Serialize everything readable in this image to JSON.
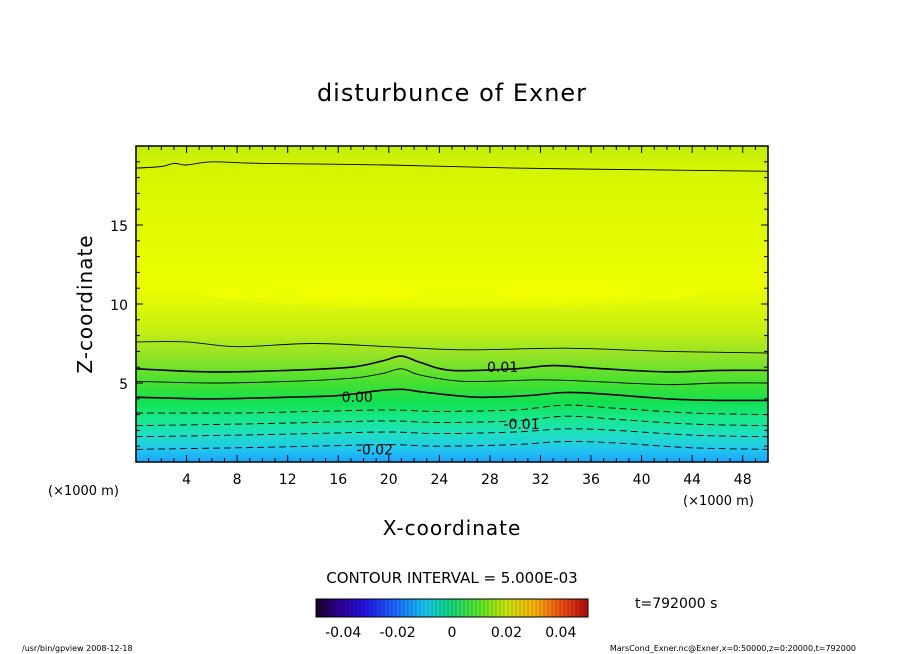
{
  "chart_data": {
    "type": "contour",
    "title": "disturbunce of Exner",
    "xlabel": "X-coordinate",
    "ylabel": "Z-coordinate",
    "x_unit": "(×1000 m)",
    "y_unit": "(×1000 m)",
    "xlim": [
      0,
      50
    ],
    "ylim": [
      0,
      20
    ],
    "x_ticks": [
      4,
      8,
      12,
      16,
      20,
      24,
      28,
      32,
      36,
      40,
      44,
      48
    ],
    "y_ticks": [
      5,
      10,
      15
    ],
    "contour_interval_text": "CONTOUR INTERVAL = 5.000E-03",
    "time_text": "t=792000 s",
    "contour_labels": [
      {
        "text": "0.01",
        "x": 29,
        "y": 6.0
      },
      {
        "text": "0.00",
        "x": 17.5,
        "y": 4.1
      },
      {
        "text": "-0.01",
        "x": 30.5,
        "y": 2.4
      },
      {
        "text": "-0.02",
        "x": 18.9,
        "y": 0.8
      }
    ],
    "contours": [
      {
        "level": 0.015,
        "style": "thin",
        "points": [
          [
            0,
            18.6
          ],
          [
            2,
            18.7
          ],
          [
            3,
            18.9
          ],
          [
            4,
            18.8
          ],
          [
            6,
            19.0
          ],
          [
            10,
            18.9
          ],
          [
            20,
            18.8
          ],
          [
            30,
            18.6
          ],
          [
            40,
            18.5
          ],
          [
            50,
            18.4
          ]
        ]
      },
      {
        "level": 0.01,
        "style": "thin",
        "points": [
          [
            0,
            7.6
          ],
          [
            4,
            7.6
          ],
          [
            8,
            7.3
          ],
          [
            14,
            7.5
          ],
          [
            20,
            7.3
          ],
          [
            26,
            7.1
          ],
          [
            34,
            7.2
          ],
          [
            42,
            7.0
          ],
          [
            50,
            6.9
          ]
        ]
      },
      {
        "level": 0.01,
        "style": "solid",
        "points": [
          [
            0,
            5.9
          ],
          [
            6,
            5.7
          ],
          [
            12,
            5.8
          ],
          [
            17,
            6.0
          ],
          [
            19.5,
            6.4
          ],
          [
            21,
            6.7
          ],
          [
            22.5,
            6.3
          ],
          [
            25,
            5.8
          ],
          [
            30,
            5.9
          ],
          [
            33,
            6.1
          ],
          [
            37,
            5.9
          ],
          [
            42,
            5.7
          ],
          [
            46,
            5.8
          ],
          [
            50,
            5.8
          ]
        ]
      },
      {
        "level": 0.005,
        "style": "thin",
        "points": [
          [
            0,
            5.1
          ],
          [
            6,
            5.0
          ],
          [
            12,
            5.1
          ],
          [
            17,
            5.3
          ],
          [
            19.5,
            5.6
          ],
          [
            21,
            5.9
          ],
          [
            22.5,
            5.5
          ],
          [
            26,
            5.1
          ],
          [
            32,
            5.2
          ],
          [
            36,
            5.1
          ],
          [
            42,
            4.9
          ],
          [
            46,
            5.0
          ],
          [
            50,
            5.0
          ]
        ]
      },
      {
        "level": 0.0,
        "style": "solid",
        "points": [
          [
            0,
            4.1
          ],
          [
            6,
            4.0
          ],
          [
            12,
            4.1
          ],
          [
            16,
            4.2
          ],
          [
            19,
            4.5
          ],
          [
            21,
            4.6
          ],
          [
            23,
            4.4
          ],
          [
            27,
            4.1
          ],
          [
            31,
            4.2
          ],
          [
            34,
            4.4
          ],
          [
            37,
            4.3
          ],
          [
            42,
            4.0
          ],
          [
            46,
            3.9
          ],
          [
            50,
            3.9
          ]
        ]
      },
      {
        "level": -0.005,
        "style": "dashed",
        "points": [
          [
            0,
            3.1
          ],
          [
            8,
            3.1
          ],
          [
            14,
            3.2
          ],
          [
            20,
            3.3
          ],
          [
            24,
            3.2
          ],
          [
            30,
            3.3
          ],
          [
            34,
            3.6
          ],
          [
            38,
            3.4
          ],
          [
            44,
            3.1
          ],
          [
            50,
            3.0
          ]
        ]
      },
      {
        "level": -0.01,
        "style": "dashed",
        "points": [
          [
            0,
            2.3
          ],
          [
            8,
            2.4
          ],
          [
            14,
            2.5
          ],
          [
            20,
            2.6
          ],
          [
            24,
            2.5
          ],
          [
            30,
            2.6
          ],
          [
            34,
            2.9
          ],
          [
            38,
            2.7
          ],
          [
            44,
            2.4
          ],
          [
            50,
            2.3
          ]
        ]
      },
      {
        "level": -0.015,
        "style": "dashed",
        "points": [
          [
            0,
            1.6
          ],
          [
            8,
            1.7
          ],
          [
            14,
            1.8
          ],
          [
            20,
            1.9
          ],
          [
            24,
            1.8
          ],
          [
            30,
            1.9
          ],
          [
            34,
            2.1
          ],
          [
            38,
            2.0
          ],
          [
            44,
            1.7
          ],
          [
            50,
            1.6
          ]
        ]
      },
      {
        "level": -0.02,
        "style": "dashed",
        "points": [
          [
            0,
            0.8
          ],
          [
            8,
            0.9
          ],
          [
            14,
            1.0
          ],
          [
            20,
            1.1
          ],
          [
            24,
            1.0
          ],
          [
            30,
            1.1
          ],
          [
            34,
            1.3
          ],
          [
            38,
            1.2
          ],
          [
            44,
            0.9
          ],
          [
            50,
            0.8
          ]
        ]
      }
    ],
    "colorbar": {
      "tick_labels": [
        "-0.04",
        "-0.02",
        "0",
        "0.02",
        "0.04"
      ],
      "tick_values": [
        -0.04,
        -0.02,
        0,
        0.02,
        0.04
      ],
      "range": [
        -0.05,
        0.05
      ]
    }
  },
  "footer": {
    "left": "/usr/bin/gpview   2008-12-18",
    "right": "MarsCond_Exner.nc@Exner,x=0:50000,z=0:20000,t=792000"
  }
}
